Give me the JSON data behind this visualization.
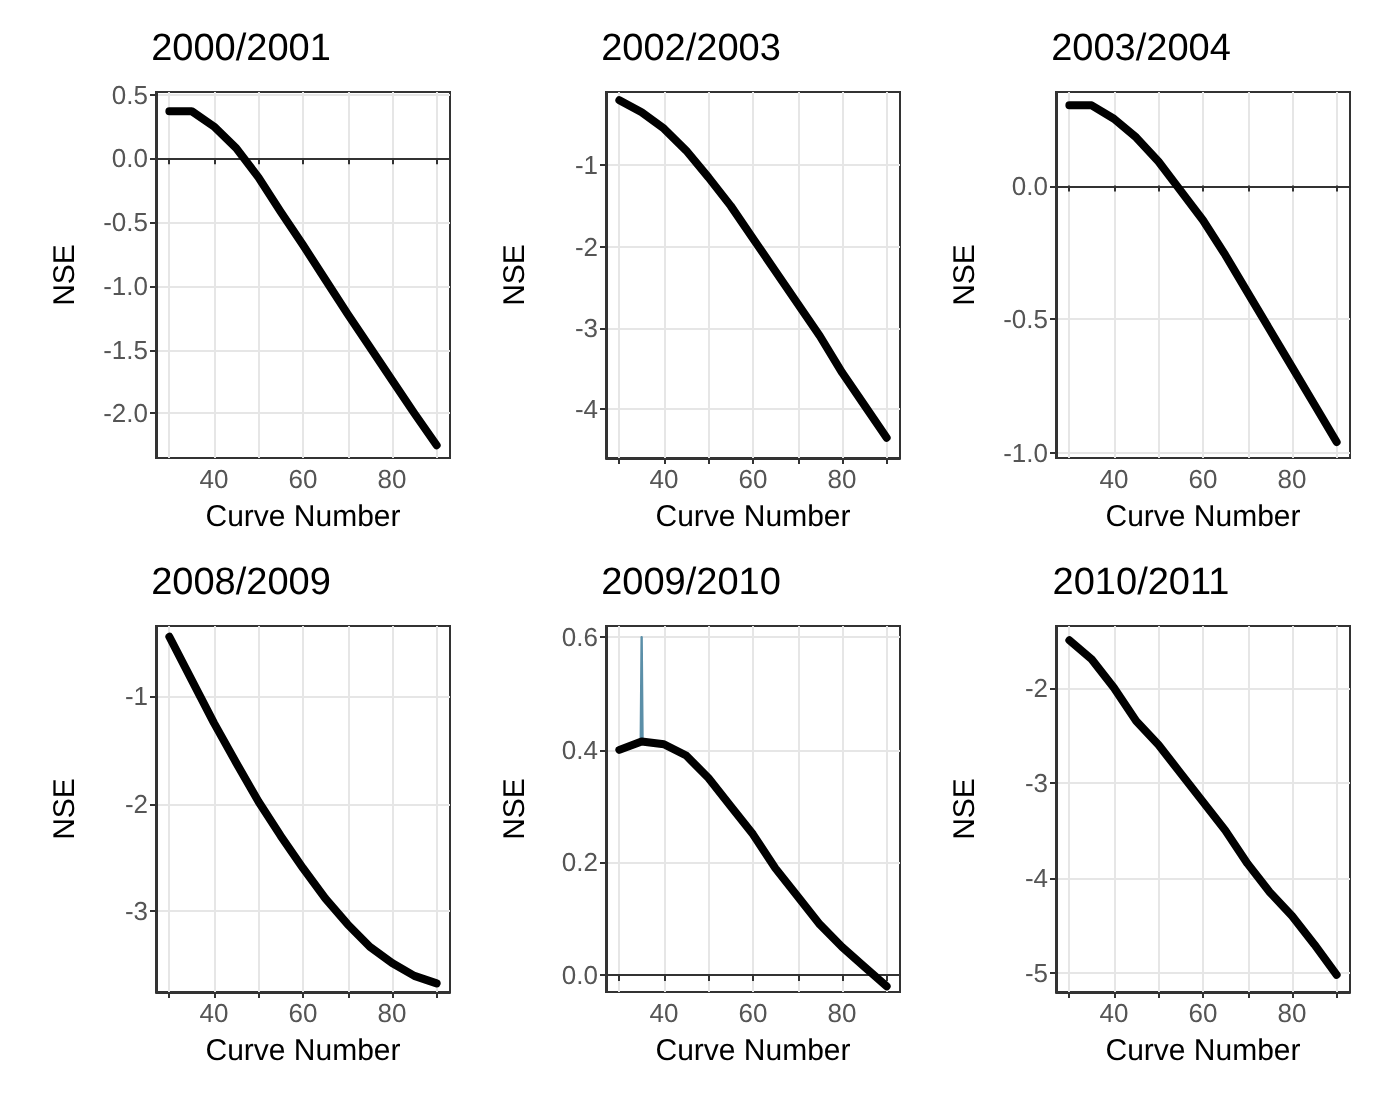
{
  "chart_data": [
    {
      "type": "line",
      "title": "2000/2001",
      "xlabel": "Curve Number",
      "ylabel": "NSE",
      "grid": true,
      "xlim": [
        27,
        93
      ],
      "xticks": [
        {
          "value": 30,
          "label": null
        },
        40,
        {
          "value": 50,
          "label": null
        },
        60,
        {
          "value": 70,
          "label": null
        },
        80,
        {
          "value": 90,
          "label": null
        }
      ],
      "ylim": [
        -2.35,
        0.52
      ],
      "yticks": [
        0.5,
        {
          "value": 0,
          "label": "0.0"
        },
        -0.5,
        {
          "value": -1,
          "label": "-1.0"
        },
        -1.5,
        {
          "value": -2,
          "label": "-2.0"
        }
      ],
      "x": [
        30,
        35,
        40,
        45,
        50,
        55,
        60,
        65,
        70,
        75,
        80,
        85,
        90
      ],
      "series": [
        {
          "color": "#000000",
          "values": [
            0.37,
            0.37,
            0.25,
            0.08,
            -0.15,
            -0.42,
            -0.68,
            -0.95,
            -1.22,
            -1.48,
            -1.74,
            -2.0,
            -2.25
          ]
        }
      ]
    },
    {
      "type": "line",
      "title": "2002/2003",
      "xlabel": "Curve Number",
      "ylabel": "NSE",
      "grid": true,
      "xlim": [
        27,
        93
      ],
      "xticks": [
        {
          "value": 30,
          "label": null
        },
        40,
        {
          "value": 50,
          "label": null
        },
        60,
        {
          "value": 70,
          "label": null
        },
        80,
        {
          "value": 90,
          "label": null
        }
      ],
      "ylim": [
        -4.6,
        -0.1
      ],
      "yticks": [
        -1,
        -2,
        -3,
        -4
      ],
      "x": [
        30,
        35,
        40,
        45,
        50,
        55,
        60,
        65,
        70,
        75,
        80,
        85,
        90
      ],
      "series": [
        {
          "color": "#000000",
          "values": [
            -0.2,
            -0.35,
            -0.55,
            -0.82,
            -1.15,
            -1.5,
            -1.9,
            -2.3,
            -2.7,
            -3.1,
            -3.55,
            -3.95,
            -4.35
          ]
        }
      ]
    },
    {
      "type": "line",
      "title": "2003/2004",
      "xlabel": "Curve Number",
      "ylabel": "NSE",
      "grid": true,
      "xlim": [
        27,
        93
      ],
      "xticks": [
        {
          "value": 30,
          "label": null
        },
        40,
        {
          "value": 50,
          "label": null
        },
        60,
        {
          "value": 70,
          "label": null
        },
        80,
        {
          "value": 90,
          "label": null
        }
      ],
      "ylim": [
        -1.02,
        0.35
      ],
      "yticks": [
        {
          "value": 0,
          "label": "0.0"
        },
        -0.5,
        {
          "value": -1,
          "label": "-1.0"
        }
      ],
      "x": [
        30,
        35,
        40,
        45,
        50,
        55,
        60,
        65,
        70,
        75,
        80,
        85,
        90
      ],
      "series": [
        {
          "color": "#000000",
          "values": [
            0.3,
            0.3,
            0.25,
            0.18,
            0.09,
            -0.02,
            -0.13,
            -0.26,
            -0.4,
            -0.54,
            -0.68,
            -0.82,
            -0.96
          ]
        }
      ]
    },
    {
      "type": "line",
      "title": "2008/2009",
      "xlabel": "Curve Number",
      "ylabel": "NSE",
      "grid": true,
      "xlim": [
        27,
        93
      ],
      "xticks": [
        {
          "value": 30,
          "label": null
        },
        40,
        {
          "value": 50,
          "label": null
        },
        60,
        {
          "value": 70,
          "label": null
        },
        80,
        {
          "value": 90,
          "label": null
        }
      ],
      "ylim": [
        -3.75,
        -0.35
      ],
      "yticks": [
        -1,
        -2,
        -3
      ],
      "x": [
        30,
        35,
        40,
        45,
        50,
        55,
        60,
        65,
        70,
        75,
        80,
        85,
        90
      ],
      "series": [
        {
          "color": "#000000",
          "values": [
            -0.45,
            -0.85,
            -1.25,
            -1.62,
            -1.98,
            -2.3,
            -2.6,
            -2.88,
            -3.12,
            -3.33,
            -3.48,
            -3.6,
            -3.67
          ]
        }
      ]
    },
    {
      "type": "line",
      "title": "2009/2010",
      "xlabel": "Curve Number",
      "ylabel": "NSE",
      "grid": true,
      "xlim": [
        27,
        93
      ],
      "xticks": [
        {
          "value": 30,
          "label": null
        },
        40,
        {
          "value": 50,
          "label": null
        },
        60,
        {
          "value": 70,
          "label": null
        },
        80,
        {
          "value": 90,
          "label": null
        }
      ],
      "ylim": [
        -0.03,
        0.62
      ],
      "yticks": [
        {
          "value": 0,
          "label": "0.0"
        },
        0.2,
        0.4,
        0.6
      ],
      "x": [
        30,
        35,
        40,
        45,
        50,
        55,
        60,
        65,
        70,
        75,
        80,
        85,
        90
      ],
      "series": [
        {
          "color": "#5b8fa8",
          "x": [
            34.8,
            35,
            35.2
          ],
          "values": [
            0.415,
            0.6,
            0.415
          ]
        },
        {
          "color": "#000000",
          "values": [
            0.4,
            0.415,
            0.41,
            0.39,
            0.35,
            0.3,
            0.25,
            0.19,
            0.14,
            0.09,
            0.05,
            0.015,
            -0.02
          ]
        }
      ]
    },
    {
      "type": "line",
      "title": "2010/2011",
      "xlabel": "Curve Number",
      "ylabel": "NSE",
      "grid": true,
      "xlim": [
        27,
        93
      ],
      "xticks": [
        {
          "value": 30,
          "label": null
        },
        40,
        {
          "value": 50,
          "label": null
        },
        60,
        {
          "value": 70,
          "label": null
        },
        80,
        {
          "value": 90,
          "label": null
        }
      ],
      "ylim": [
        -5.2,
        -1.35
      ],
      "yticks": [
        -2,
        -3,
        -4,
        -5
      ],
      "x": [
        30,
        35,
        40,
        45,
        50,
        55,
        60,
        65,
        70,
        75,
        80,
        85,
        90
      ],
      "series": [
        {
          "color": "#000000",
          "values": [
            -1.5,
            -1.7,
            -2.0,
            -2.35,
            -2.6,
            -2.9,
            -3.2,
            -3.5,
            -3.85,
            -4.15,
            -4.4,
            -4.7,
            -5.02
          ]
        }
      ]
    }
  ]
}
